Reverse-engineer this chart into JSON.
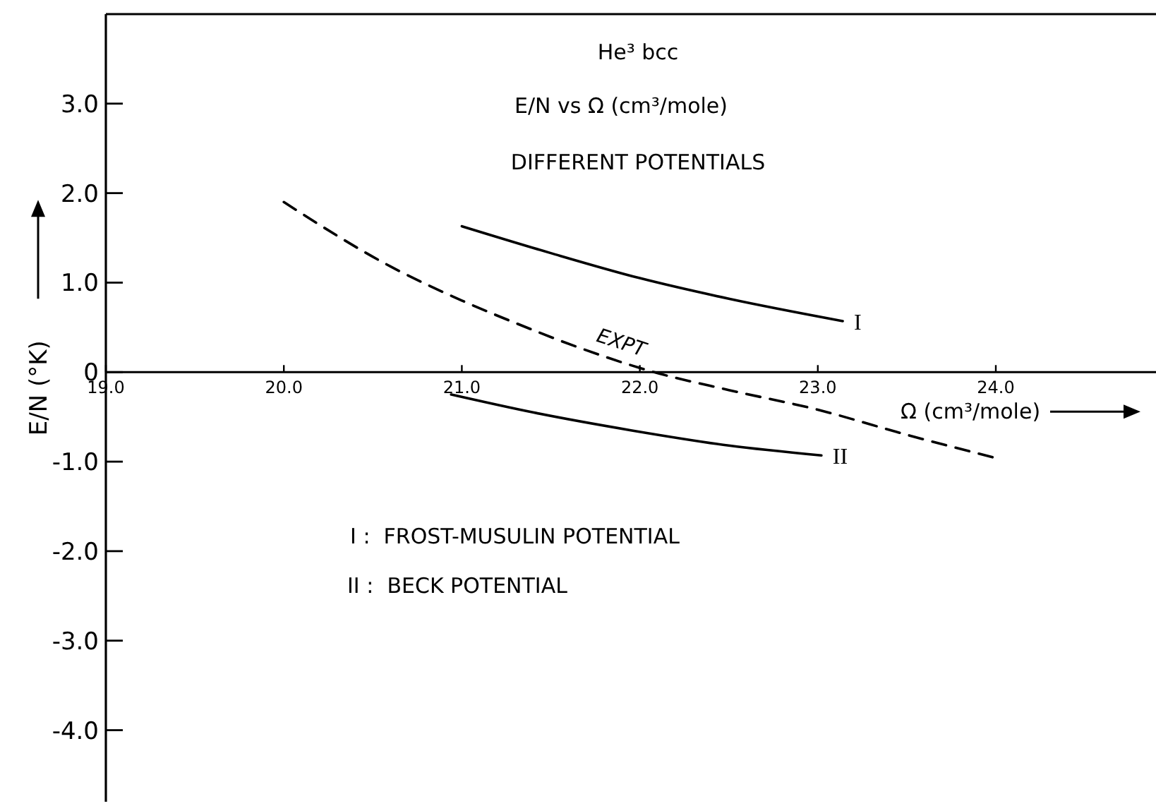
{
  "chart_data": {
    "type": "line",
    "title": "He³ bcc",
    "subtitle": "E/N vs Ω (cm³/mole)",
    "xlabel": "Ω (cm³/mole)",
    "ylabel": "E/N (°K)",
    "annotations": [
      "DIFFERENT POTENTIALS",
      "I :  FROST-MUSULIN POTENTIAL",
      "II :  BECK POTENTIAL"
    ],
    "xlim": [
      19.0,
      24.9
    ],
    "ylim": [
      -4.8,
      4.0
    ],
    "xticks": [
      {
        "value": 19,
        "label": "19.0"
      },
      {
        "value": 20,
        "label": "20.0"
      },
      {
        "value": 21,
        "label": "21.0"
      },
      {
        "value": 22,
        "label": "22.0"
      },
      {
        "value": 23,
        "label": "23.0"
      },
      {
        "value": 24,
        "label": "24.0"
      }
    ],
    "yticks": [
      {
        "value": 3,
        "label": "3.0"
      },
      {
        "value": 2,
        "label": "2.0"
      },
      {
        "value": 1,
        "label": "1.0"
      },
      0,
      {
        "value": -1,
        "label": "-1.0"
      },
      {
        "value": -2,
        "label": "-2.0"
      },
      {
        "value": -3,
        "label": "-3.0"
      },
      {
        "value": -4,
        "label": "-4.0"
      }
    ],
    "grid": false,
    "marker": "none",
    "series": [
      {
        "name": "I",
        "color": "#000000",
        "line_style": "solid",
        "x": [
          21.0,
          21.5,
          22.0,
          22.5,
          23.14
        ],
        "values": [
          1.63,
          1.33,
          1.05,
          0.82,
          0.57
        ]
      },
      {
        "name": "II",
        "color": "#000000",
        "line_style": "solid",
        "x": [
          20.94,
          21.4,
          21.95,
          22.5,
          23.02
        ],
        "values": [
          -0.25,
          -0.45,
          -0.65,
          -0.82,
          -0.93
        ]
      },
      {
        "name": "EXPT",
        "color": "#000000",
        "line_style": "dashed",
        "x": [
          20.0,
          20.6,
          21.0,
          21.3,
          21.65,
          22.08,
          22.5,
          23.0,
          23.5,
          24.0
        ],
        "values": [
          1.9,
          1.18,
          0.8,
          0.55,
          0.28,
          0,
          -0.2,
          -0.42,
          -0.7,
          -0.96
        ]
      }
    ]
  }
}
